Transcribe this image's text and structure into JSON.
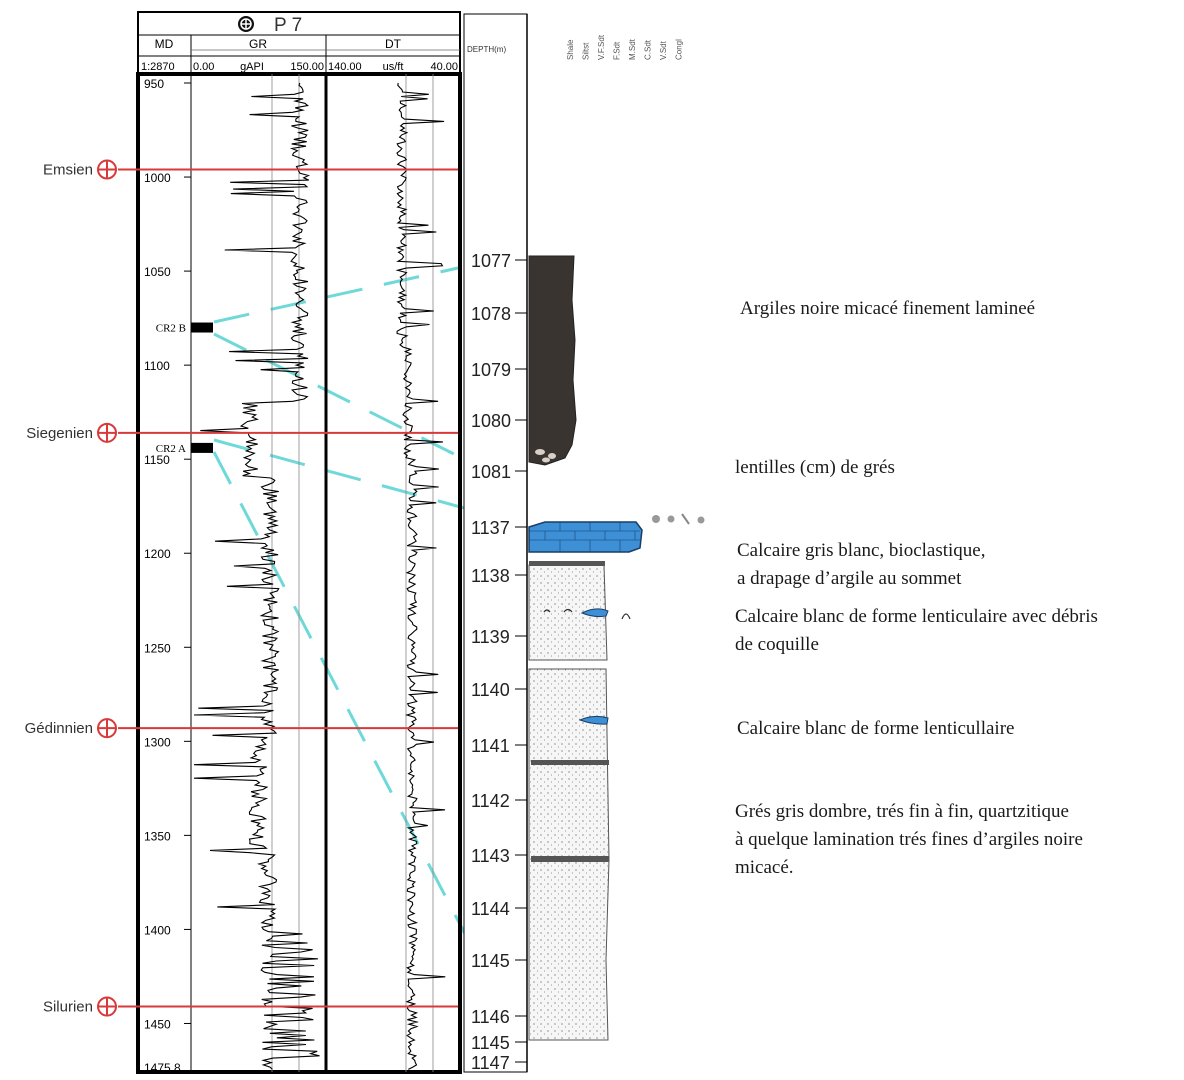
{
  "well": {
    "name": "P 7",
    "scale": "1:2870",
    "tracks": {
      "md": {
        "label": "MD"
      },
      "gr": {
        "label": "GR",
        "min": "0.00",
        "unit": "gAPI",
        "max": "150.00"
      },
      "dt": {
        "label": "DT",
        "min": "140.00",
        "unit": "us/ft",
        "max": "40.00"
      }
    },
    "md_ticks": [
      {
        "value": 950,
        "label": "950"
      },
      {
        "value": 1000,
        "label": "1000"
      },
      {
        "value": 1050,
        "label": "1050"
      },
      {
        "value": 1100,
        "label": "1100"
      },
      {
        "value": 1150,
        "label": "1150"
      },
      {
        "value": 1200,
        "label": "1200"
      },
      {
        "value": 1250,
        "label": "1250"
      },
      {
        "value": 1300,
        "label": "1300"
      },
      {
        "value": 1350,
        "label": "1350"
      },
      {
        "value": 1400,
        "label": "1400"
      },
      {
        "value": 1450,
        "label": "1450"
      },
      {
        "value": 1475.8,
        "label": "1475.8"
      }
    ],
    "formation_tops": [
      {
        "name": "Emsien",
        "md": 996
      },
      {
        "name": "Siegenien",
        "md": 1136
      },
      {
        "name": "Gédinnien",
        "md": 1293
      },
      {
        "name": "Silurien",
        "md": 1441
      }
    ],
    "cores": [
      {
        "label": "CR2 B",
        "md": 1080
      },
      {
        "label": "CR2 A",
        "md": 1144
      }
    ]
  },
  "core_log": {
    "depth_header": "DEPTH(m)",
    "grain_columns": [
      "Shale",
      "Siltst",
      "V.F.Sdt",
      "F.Sdt",
      "M.Sdt",
      "C.Sdt",
      "V.Sdt",
      "Congl"
    ],
    "depth_labels": [
      "1077",
      "1078",
      "1079",
      "1080",
      "1081",
      "1137",
      "1138",
      "1139",
      "1140",
      "1141",
      "1142",
      "1143",
      "1144",
      "1145",
      "1146",
      "1145",
      "1147"
    ],
    "colors": {
      "shale": "#3a3430",
      "limestone": "#3d8fd6",
      "sandstone": "#f4f4f4",
      "correlation": "#6fd8d8",
      "tops": "#d83a3a"
    }
  },
  "descriptions": [
    {
      "lines": [
        "Argiles noire micacé finement lamineé"
      ]
    },
    {
      "lines": [
        "lentilles (cm) de grés"
      ]
    },
    {
      "lines": [
        "Calcaire gris blanc, bioclastique,",
        "a drapage d’argile au sommet"
      ]
    },
    {
      "lines": [
        "Calcaire blanc de forme lenticulaire avec débris",
        "de coquille"
      ]
    },
    {
      "lines": [
        "Calcaire blanc de forme lenticullaire"
      ]
    },
    {
      "lines": [
        "Grés gris dombre, trés fin à fin, quartzitique",
        "à quelque lamination trés fines d’argiles noire",
        "micacé."
      ]
    }
  ]
}
